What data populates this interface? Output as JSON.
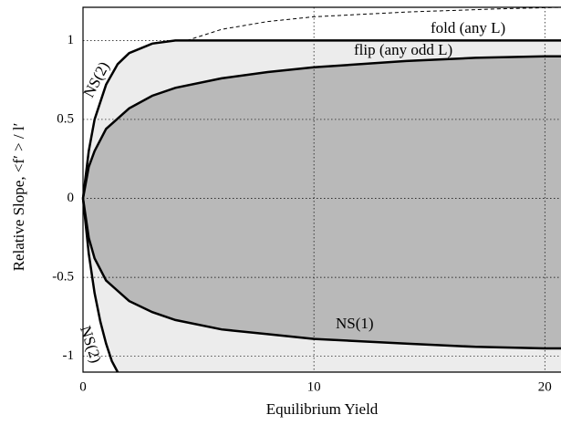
{
  "chart_data": {
    "type": "line",
    "xlabel": "Equilibrium Yield",
    "ylabel": "Relative Slope, <f′ > / l′",
    "xlim": [
      0,
      20.7
    ],
    "ylim": [
      -1.1,
      1.21
    ],
    "xticks": [
      0,
      10,
      20
    ],
    "yticks": [
      -1,
      -0.5,
      0,
      0.5,
      1
    ],
    "grid": true,
    "series": [
      {
        "name": "NS(2)",
        "color": "#000000",
        "x": [
          0,
          0.25,
          0.5,
          1,
          1.5,
          2,
          3,
          4,
          4.5,
          20.7
        ],
        "values": [
          0,
          0.3,
          0.5,
          0.72,
          0.85,
          0.92,
          0.98,
          1,
          1,
          1
        ]
      },
      {
        "name": "flip (any odd L)",
        "color": "#000000",
        "x": [
          0,
          0.25,
          0.5,
          1,
          2,
          3,
          4,
          6,
          8,
          10,
          14,
          17,
          20,
          20.7
        ],
        "values": [
          0,
          0.2,
          0.3,
          0.44,
          0.57,
          0.65,
          0.7,
          0.76,
          0.8,
          0.83,
          0.87,
          0.89,
          0.9,
          0.9
        ]
      },
      {
        "name": "NS(1)",
        "color": "#000000",
        "x": [
          0,
          0.25,
          0.5,
          1,
          2,
          3,
          4,
          6,
          8,
          10,
          14,
          17,
          20,
          20.7
        ],
        "values": [
          0,
          -0.25,
          -0.38,
          -0.52,
          -0.65,
          -0.72,
          -0.77,
          -0.83,
          -0.86,
          -0.89,
          -0.92,
          -0.94,
          -0.95,
          -0.95
        ]
      },
      {
        "name": "NS(2)",
        "color": "#000000",
        "x": [
          0,
          0.25,
          0.5,
          0.75,
          1,
          1.25,
          1.5
        ],
        "values": [
          0,
          -0.35,
          -0.6,
          -0.78,
          -0.92,
          -1.03,
          -1.1
        ]
      },
      {
        "name": "fold (any L)",
        "color": "#000000",
        "dashed": true,
        "x": [
          4.5,
          6,
          8,
          10,
          14,
          18,
          20.7
        ],
        "values": [
          1,
          1.07,
          1.12,
          1.15,
          1.18,
          1.2,
          1.21
        ]
      }
    ]
  }
}
